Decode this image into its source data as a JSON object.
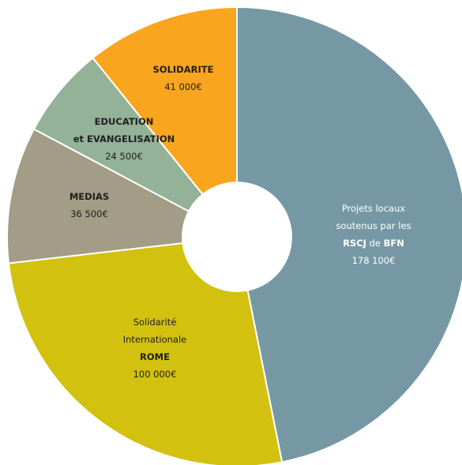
{
  "chart_data": {
    "type": "pie",
    "donut": true,
    "title": "",
    "slices": [
      {
        "id": "projets",
        "value": 178100,
        "color": "#7598a4",
        "text_color": "#ffffff",
        "label_lines": [
          [
            {
              "t": "Projets locaux"
            }
          ],
          [
            {
              "t": "soutenus par les"
            }
          ],
          [
            {
              "t": "RSCJ",
              "b": true
            },
            {
              "t": " de "
            },
            {
              "t": "BFN",
              "b": true
            }
          ]
        ],
        "value_label": "178 100€"
      },
      {
        "id": "rome",
        "value": 100000,
        "color": "#d2c10f",
        "text_color": "#1f1f1f",
        "label_lines": [
          [
            {
              "t": "Solidarité"
            }
          ],
          [
            {
              "t": "Internationale"
            }
          ],
          [
            {
              "t": "ROME",
              "b": true
            }
          ]
        ],
        "value_label": "100 000€"
      },
      {
        "id": "medias",
        "value": 36500,
        "color": "#a39c86",
        "text_color": "#1f1f1f",
        "label_lines": [
          [
            {
              "t": "MEDIAS",
              "b": true
            }
          ]
        ],
        "value_label": "36 500€"
      },
      {
        "id": "education",
        "value": 24500,
        "color": "#93b298",
        "text_color": "#1f1f1f",
        "label_lines": [
          [
            {
              "t": "EDUCATION",
              "b": true
            }
          ],
          [
            {
              "t": "et EVANGELISATION",
              "b": true
            }
          ]
        ],
        "value_label": "24 500€"
      },
      {
        "id": "solidarite",
        "value": 41000,
        "color": "#f9a51d",
        "text_color": "#1f1f1f",
        "label_lines": [
          [
            {
              "t": "SOLIDARITE",
              "b": true
            }
          ]
        ],
        "value_label": "41 000€"
      }
    ]
  }
}
